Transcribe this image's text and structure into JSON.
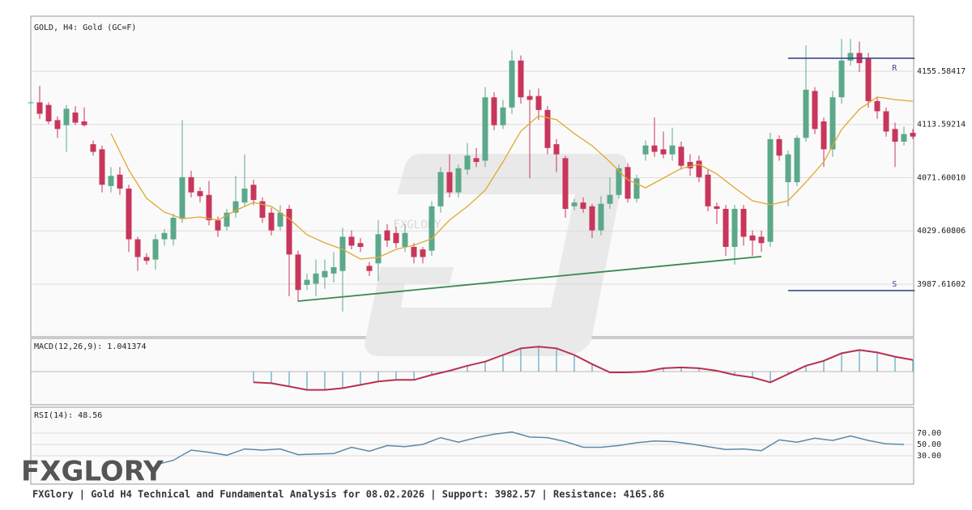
{
  "chart_data": [
    {
      "type": "candlestick",
      "title": "GOLD, H4: Gold (GC=F)",
      "up_color": "#5ca88a",
      "down_color": "#c9365b",
      "ylim": [
        3946.1,
        4199.0
      ],
      "yticks": [
        4155.58417,
        4113.59214,
        {
          "value": 4071.6001,
          "label": "4071.60010"
        },
        4029.60806,
        3987.61602
      ],
      "grid": true,
      "ohlc": [
        [
          4131,
          4133,
          4129,
          4131
        ],
        [
          4131,
          4144,
          4118,
          4122
        ],
        [
          4129,
          4131,
          4114,
          4116
        ],
        [
          4117,
          4120,
          4103,
          4110
        ],
        [
          4113,
          4129,
          4092,
          4126
        ],
        [
          4123,
          4128,
          4113,
          4115
        ],
        [
          4116,
          4127,
          4112,
          4113
        ],
        [
          4098,
          4101,
          4089,
          4092
        ],
        [
          4094,
          4097,
          4060,
          4066
        ],
        [
          4065,
          4080,
          4060,
          4073
        ],
        [
          4074,
          4080,
          4058,
          4063
        ],
        [
          4063,
          4066,
          4013,
          4023
        ],
        [
          4023,
          4025,
          3998,
          4009
        ],
        [
          4009,
          4012,
          4003,
          4006
        ],
        [
          4007,
          4027,
          3999,
          4023
        ],
        [
          4023,
          4031,
          4018,
          4028
        ],
        [
          4023,
          4043,
          4018,
          4040
        ],
        [
          4039,
          4117,
          4036,
          4072
        ],
        [
          4072,
          4077,
          4056,
          4060
        ],
        [
          4061,
          4064,
          4052,
          4057
        ],
        [
          4058,
          4069,
          4034,
          4038
        ],
        [
          4038,
          4041,
          4025,
          4030
        ],
        [
          4033,
          4047,
          4030,
          4044
        ],
        [
          4044,
          4073,
          4040,
          4053
        ],
        [
          4052,
          4090,
          4049,
          4063
        ],
        [
          4066,
          4070,
          4050,
          4054
        ],
        [
          4053,
          4056,
          4036,
          4040
        ],
        [
          4044,
          4048,
          4026,
          4030
        ],
        [
          4033,
          4050,
          4030,
          4044
        ],
        [
          4047,
          4050,
          3978,
          4011
        ],
        [
          4011,
          4014,
          3974,
          3983
        ],
        [
          3987,
          3996,
          3983,
          3991
        ],
        [
          3988,
          4007,
          3978,
          3996
        ],
        [
          3993,
          4007,
          3984,
          3998
        ],
        [
          3996,
          4013,
          3989,
          4001
        ],
        [
          3998,
          4032,
          3966,
          4025
        ],
        [
          4025,
          4030,
          4015,
          4018
        ],
        [
          4020,
          4024,
          4013,
          4017
        ],
        [
          4002,
          4005,
          3994,
          3998
        ],
        [
          4004,
          4038,
          3990,
          4027
        ],
        [
          4030,
          4035,
          4017,
          4022
        ],
        [
          4028,
          4033,
          4016,
          4020
        ],
        [
          4017,
          4035,
          4013,
          4028
        ],
        [
          4017,
          4020,
          4004,
          4009
        ],
        [
          4015,
          4017,
          4004,
          4009
        ],
        [
          4014,
          4053,
          4010,
          4049
        ],
        [
          4049,
          4080,
          4044,
          4076
        ],
        [
          4076,
          4090,
          4056,
          4060
        ],
        [
          4060,
          4082,
          4056,
          4079
        ],
        [
          4078,
          4099,
          4074,
          4089
        ],
        [
          4087,
          4095,
          4080,
          4084
        ],
        [
          4085,
          4143,
          4080,
          4135
        ],
        [
          4135,
          4139,
          4109,
          4113
        ],
        [
          4113,
          4133,
          4110,
          4127
        ],
        [
          4127,
          4172,
          4122,
          4164
        ],
        [
          4164,
          4168,
          4130,
          4135
        ],
        [
          4136,
          4141,
          4071,
          4133
        ],
        [
          4136,
          4142,
          4117,
          4125
        ],
        [
          4125,
          4128,
          4090,
          4095
        ],
        [
          4098,
          4102,
          4076,
          4090
        ],
        [
          4087,
          4089,
          4040,
          4047
        ],
        [
          4049,
          4055,
          4046,
          4052
        ],
        [
          4052,
          4056,
          4044,
          4047
        ],
        [
          4049,
          4051,
          4024,
          4030
        ],
        [
          4030,
          4057,
          4026,
          4051
        ],
        [
          4051,
          4072,
          4047,
          4058
        ],
        [
          4058,
          4082,
          4055,
          4079
        ],
        [
          4080,
          4083,
          4052,
          4055
        ],
        [
          4055,
          4074,
          4052,
          4071
        ],
        [
          4090,
          4101,
          4085,
          4097
        ],
        [
          4097,
          4119,
          4088,
          4092
        ],
        [
          4094,
          4108,
          4087,
          4090
        ],
        [
          4090,
          4111,
          4085,
          4097
        ],
        [
          4096,
          4100,
          4078,
          4081
        ],
        [
          4084,
          4090,
          4073,
          4079
        ],
        [
          4085,
          4089,
          4068,
          4072
        ],
        [
          4074,
          4078,
          4045,
          4049
        ],
        [
          4049,
          4052,
          4035,
          4047
        ],
        [
          4047,
          4050,
          4010,
          4017
        ],
        [
          4017,
          4050,
          4003,
          4047
        ],
        [
          4047,
          4050,
          4018,
          4025
        ],
        [
          4026,
          4030,
          4010,
          4022
        ],
        [
          4025,
          4030,
          4013,
          4020
        ],
        [
          4021,
          4107,
          4017,
          4102
        ],
        [
          4102,
          4105,
          4085,
          4089
        ],
        [
          4068,
          4093,
          4049,
          4090
        ],
        [
          4068,
          4105,
          4065,
          4103
        ],
        [
          4103,
          4176,
          4100,
          4141
        ],
        [
          4140,
          4143,
          4106,
          4110
        ],
        [
          4116,
          4119,
          4080,
          4094
        ],
        [
          4094,
          4140,
          4088,
          4135
        ],
        [
          4135,
          4181,
          4130,
          4164
        ],
        [
          4164,
          4181,
          4160,
          4170
        ],
        [
          4170,
          4179,
          4155,
          4162
        ],
        [
          4166,
          4170,
          4127,
          4132
        ],
        [
          4132,
          4135,
          4118,
          4124
        ],
        [
          4124,
          4127,
          4104,
          4108
        ],
        [
          4110,
          4115,
          4080,
          4100
        ],
        [
          4100,
          4112,
          4097,
          4106
        ],
        [
          4107,
          4110,
          4102,
          4104
        ]
      ],
      "ma": {
        "color": "#e0a830",
        "x": [
          9,
          11,
          13,
          15,
          17,
          19,
          21,
          23,
          25,
          27,
          29,
          31,
          33,
          35,
          37,
          39,
          41,
          43,
          45,
          47,
          49,
          51,
          53,
          55,
          57,
          59,
          61,
          63,
          65,
          67,
          69,
          71,
          73,
          75,
          77,
          79,
          81,
          83,
          85,
          87,
          89,
          91,
          93,
          95,
          97,
          99
        ],
        "values": [
          4106.4,
          4077.7,
          4055.3,
          4044.4,
          4039.3,
          4040.6,
          4038.1,
          4045.7,
          4052.1,
          4048.9,
          4039.3,
          4026.6,
          4020.2,
          4015.1,
          4007.4,
          4008.7,
          4015.1,
          4018.3,
          4023.4,
          4038.1,
          4048.9,
          4061.7,
          4084.1,
          4108.3,
          4120.5,
          4117.3,
          4106.4,
          4096.8,
          4084.1,
          4070.0,
          4063.6,
          4071.3,
          4078.9,
          4082.1,
          4074.5,
          4063.6,
          4053.4,
          4050.2,
          4053.4,
          4068.1,
          4084.1,
          4109.6,
          4125.6,
          4135.2,
          4133.2,
          4131.9
        ]
      },
      "trend": {
        "color": "#3a8a50",
        "x": [
          30,
          82
        ],
        "values": [
          3974.2,
          4009.4
        ]
      },
      "levels": [
        {
          "label": "R",
          "value": 4165.86,
          "x": [
            85,
            99.2
          ],
          "color": "#3b4a8c"
        },
        {
          "label": "S",
          "value": 3982.57,
          "x": [
            85,
            99.2
          ],
          "color": "#3b4a8c"
        }
      ]
    },
    {
      "type": "histogram-line",
      "title": "MACD(12,26,9): 1.041374",
      "color": "#5aa6c0",
      "line_color": "#b8304f",
      "ylim": [
        -20,
        20
      ],
      "x": [
        25,
        27,
        29,
        31,
        33,
        35,
        37,
        39,
        41,
        43,
        45,
        47,
        49,
        51,
        53,
        55,
        57,
        59,
        61,
        63,
        65,
        67,
        69,
        71,
        73,
        75,
        77,
        79,
        81,
        83,
        85,
        87,
        89,
        91,
        93,
        95,
        97,
        99
      ],
      "values": [
        -6.5,
        -7,
        -9,
        -11,
        -11,
        -10,
        -8,
        -6,
        -5,
        -5,
        -2,
        0.5,
        3.5,
        6,
        10,
        14,
        15,
        14,
        10,
        4.5,
        -0.5,
        -0.5,
        0,
        2,
        2.5,
        2,
        0.5,
        -2,
        -3.5,
        -6.5,
        -1.5,
        3.5,
        6.5,
        11,
        13,
        11.5,
        9,
        7
      ]
    },
    {
      "type": "line",
      "title": "RSI(14): 48.56",
      "color": "#5a8aa8",
      "ylim": [
        -20,
        115.7
      ],
      "yticks": [
        {
          "value": 70,
          "label": "70.00"
        },
        {
          "value": 50,
          "label": "50.00"
        },
        {
          "value": 30,
          "label": "30.00"
        }
      ],
      "grid": true,
      "x": [
        14,
        16,
        18,
        20,
        22,
        24,
        26,
        28,
        30,
        32,
        34,
        36,
        38,
        40,
        42,
        44,
        46,
        48,
        50,
        52,
        54,
        56,
        58,
        60,
        62,
        64,
        66,
        68,
        70,
        72,
        74,
        76,
        78,
        80,
        82,
        84,
        86,
        88,
        90,
        92,
        94,
        96,
        98
      ],
      "values": [
        14,
        22,
        40,
        36,
        31,
        42,
        40,
        42,
        32,
        33,
        34,
        45,
        38,
        48,
        46,
        50,
        62,
        54,
        62,
        68,
        72,
        63,
        62,
        55,
        45,
        45,
        48,
        53,
        56,
        55,
        51,
        46,
        41,
        42,
        39,
        58,
        54,
        61,
        57,
        65,
        57,
        51,
        50
      ]
    }
  ],
  "watermark": "FXGLORY",
  "logo": "FXGLORY",
  "footer": "FXGlory | Gold H4 Technical and Fundamental Analysis for 08.02.2026 | Support: 3982.57 | Resistance: 4165.86"
}
